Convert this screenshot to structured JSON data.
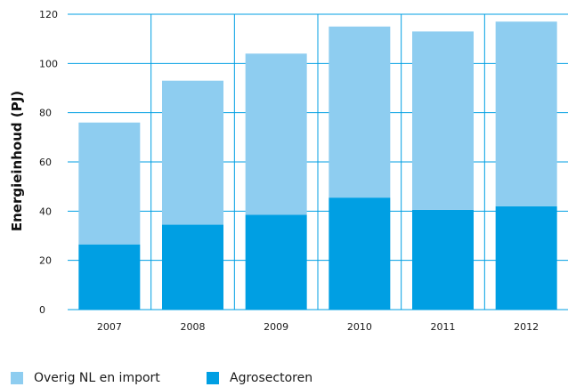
{
  "chart_data": {
    "type": "bar",
    "stacked": true,
    "categories": [
      "2007",
      "2008",
      "2009",
      "2010",
      "2011",
      "2012"
    ],
    "series": [
      {
        "name": "Agrosectoren",
        "color": "#009fe3",
        "values": [
          26.5,
          34.5,
          38.5,
          45.5,
          40.5,
          42
        ]
      },
      {
        "name": "Overig NL en import",
        "color": "#8ecdf0",
        "values": [
          49.5,
          58.5,
          65.5,
          69.5,
          72.5,
          75
        ]
      }
    ],
    "ylabel": "Energieinhoud (PJ)",
    "xlabel": "",
    "ylim": [
      0,
      120
    ],
    "yticks": [
      0,
      20,
      40,
      60,
      80,
      100,
      120
    ],
    "grid": true,
    "gridline_color": "#009fe3",
    "legend_position": "bottom-left"
  },
  "legend": {
    "items": [
      {
        "label": "Overig NL en import",
        "color": "#8ecdf0"
      },
      {
        "label": "Agrosectoren",
        "color": "#009fe3"
      }
    ]
  }
}
